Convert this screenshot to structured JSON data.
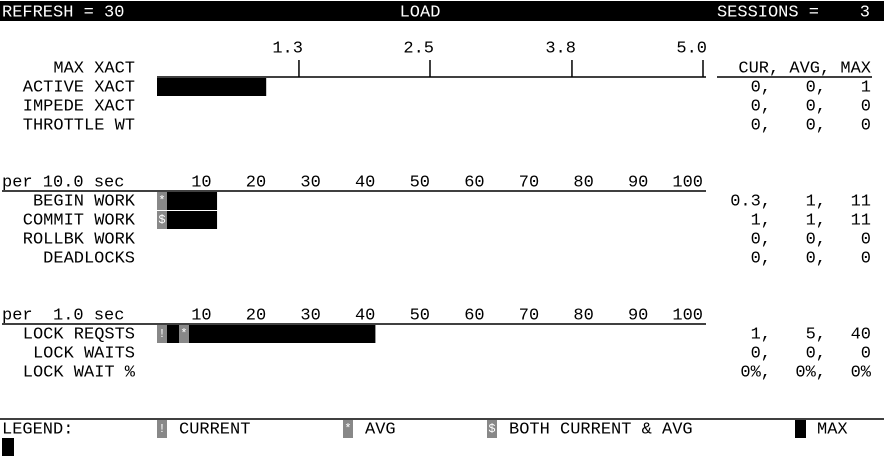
{
  "header": {
    "refresh": "REFRESH = 30",
    "title": "LOAD",
    "sessions": "SESSIONS =    3"
  },
  "column_header": "CUR, AVG, MAX",
  "sections": [
    {
      "scale_label": "MAX XACT",
      "range": [
        0,
        5
      ],
      "ticks": [
        1.3,
        2.5,
        3.8,
        {
          "value": 5,
          "label": "5.0"
        }
      ],
      "rows": [
        {
          "label": "ACTIVE XACT",
          "cur": {
            "value": 0,
            "label": "0,"
          },
          "avg": {
            "value": 0,
            "label": "0,"
          },
          "max": 1
        },
        {
          "label": "IMPEDE XACT",
          "cur": {
            "value": 0,
            "label": "0,"
          },
          "avg": {
            "value": 0,
            "label": "0,"
          },
          "max": 0
        },
        {
          "label": "THROTTLE WT",
          "cur": {
            "value": 0,
            "label": "0,"
          },
          "avg": {
            "value": 0,
            "label": "0,"
          },
          "max": 0
        }
      ]
    },
    {
      "scale_label": "per 10.0 sec",
      "range": [
        0,
        100
      ],
      "ticks": [
        10,
        20,
        30,
        40,
        50,
        60,
        70,
        80,
        90,
        100
      ],
      "rows": [
        {
          "label": "BEGIN WORK",
          "cur": {
            "value": 0.3,
            "label": "0.3,"
          },
          "avg": {
            "value": 1,
            "label": "1,"
          },
          "max": 11
        },
        {
          "label": "COMMIT WORK",
          "cur": {
            "value": 1,
            "label": "1,"
          },
          "avg": {
            "value": 1,
            "label": "1,"
          },
          "max": 11
        },
        {
          "label": "ROLLBK WORK",
          "cur": {
            "value": 0,
            "label": "0,"
          },
          "avg": {
            "value": 0,
            "label": "0,"
          },
          "max": 0
        },
        {
          "label": "DEADLOCKS",
          "cur": {
            "value": 0,
            "label": "0,"
          },
          "avg": {
            "value": 0,
            "label": "0,"
          },
          "max": 0
        }
      ]
    },
    {
      "scale_label": "per  1.0 sec",
      "range": [
        0,
        100
      ],
      "ticks": [
        10,
        20,
        30,
        40,
        50,
        60,
        70,
        80,
        90,
        100
      ],
      "rows": [
        {
          "label": "LOCK REQSTS",
          "cur": {
            "value": 1,
            "label": "1,"
          },
          "avg": {
            "value": 5,
            "label": "5,"
          },
          "max": 40
        },
        {
          "label": "LOCK WAITS",
          "cur": {
            "value": 0,
            "label": "0,"
          },
          "avg": {
            "value": 0,
            "label": "0,"
          },
          "max": 0
        },
        {
          "label": "LOCK WAIT %",
          "cur": {
            "value": 0,
            "label": "0%,"
          },
          "avg": {
            "value": 0,
            "label": "0%,"
          },
          "max": {
            "value": 0,
            "label": "0%"
          }
        }
      ]
    }
  ],
  "legend": {
    "title": "LEGEND:",
    "items": [
      {
        "symbol": "!",
        "label": "CURRENT"
      },
      {
        "symbol": "*",
        "label": "AVG"
      },
      {
        "symbol": "$",
        "label": "BOTH CURRENT & AVG"
      },
      {
        "label": "MAX"
      }
    ]
  }
}
